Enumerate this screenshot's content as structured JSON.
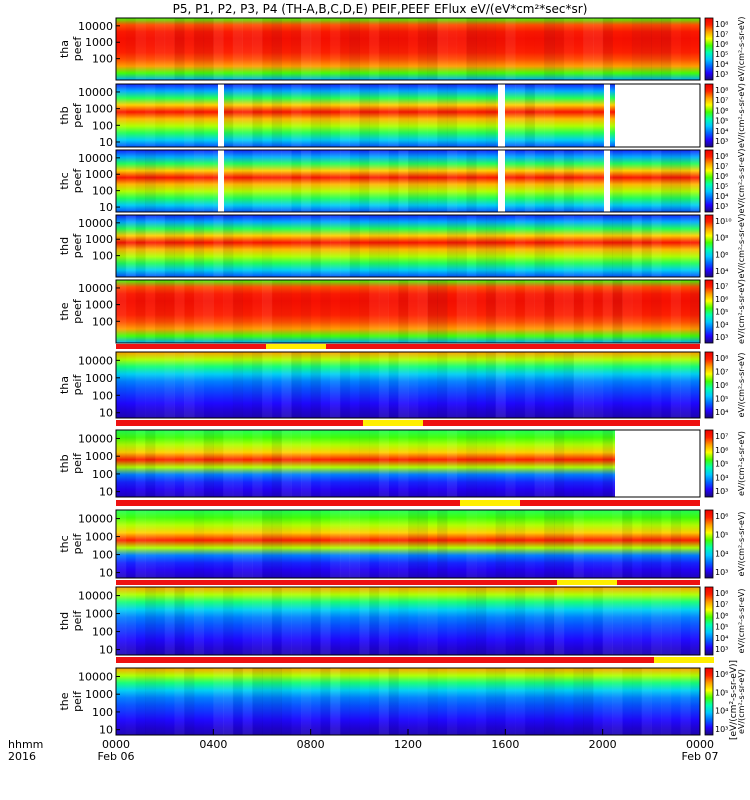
{
  "title": "P5, P1, P2, P3, P4 (TH-A,B,C,D,E) PEIF,PEEF EFlux eV/(eV*cm²*sec*sr)",
  "chart_data": [
    {
      "type": "heatmap",
      "x_axis": {
        "row_labels": [
          "hhmm",
          "2016"
        ],
        "range": [
          "2016-02-06 00:00",
          "2016-02-07 00:00"
        ],
        "ticks": [
          {
            "t": "0000",
            "d": "Feb 06"
          },
          {
            "t": "0400",
            "d": ""
          },
          {
            "t": "0800",
            "d": ""
          },
          {
            "t": "1200",
            "d": ""
          },
          {
            "t": "1600",
            "d": ""
          },
          {
            "t": "2000",
            "d": ""
          },
          {
            "t": "0000",
            "d": "Feb 07"
          }
        ]
      },
      "energy_scale": "log",
      "panels": [
        {
          "probe": "tha",
          "species": "peef",
          "ylabel": [
            "tha",
            "peef"
          ],
          "yticks": [
            "10000",
            "1000",
            "100"
          ],
          "ylim": [
            5,
            30000
          ],
          "cbar_ticks": [
            "10⁸",
            "10⁷",
            "10⁶",
            "10⁵",
            "10⁴",
            "10³"
          ],
          "cbar_label": "eV/(cm²-s-sr-eV)"
        },
        {
          "probe": "thb",
          "species": "peef",
          "ylabel": [
            "thb",
            "peef"
          ],
          "yticks": [
            "10000",
            "1000",
            "100",
            "10"
          ],
          "ylim": [
            5,
            30000
          ],
          "cbar_ticks": [
            "10⁸",
            "10⁷",
            "10⁶",
            "10⁵",
            "10⁴",
            "10³"
          ],
          "cbar_label": "eV/(cm²-s-sr-eV)"
        },
        {
          "probe": "thc",
          "species": "peef",
          "ylabel": [
            "thc",
            "peef"
          ],
          "yticks": [
            "10000",
            "1000",
            "100",
            "10"
          ],
          "ylim": [
            5,
            30000
          ],
          "cbar_ticks": [
            "10⁸",
            "10⁷",
            "10⁶",
            "10⁵",
            "10⁴",
            "10³"
          ],
          "cbar_label": "eV/(cm²-s-sr-eV)"
        },
        {
          "probe": "thd",
          "species": "peef",
          "ylabel": [
            "thd",
            "peef"
          ],
          "yticks": [
            "10000",
            "1000",
            "100"
          ],
          "ylim": [
            5,
            30000
          ],
          "cbar_ticks": [
            "10¹⁰",
            "10⁸",
            "10⁶",
            "10⁴"
          ],
          "cbar_label": "eV/(cm²-s-sr-eV)"
        },
        {
          "probe": "the",
          "species": "peef",
          "ylabel": [
            "the",
            "peef"
          ],
          "yticks": [
            "10000",
            "1000",
            "100"
          ],
          "ylim": [
            5,
            30000
          ],
          "cbar_ticks": [
            "10⁷",
            "10⁶",
            "10⁵",
            "10⁴",
            "10³"
          ],
          "cbar_label": "eV/(cm²-s-sr-eV)"
        },
        {
          "probe": "tha",
          "species": "peif",
          "ylabel": [
            "tha",
            "peif"
          ],
          "yticks": [
            "10000",
            "1000",
            "100",
            "10"
          ],
          "ylim": [
            5,
            30000
          ],
          "cbar_ticks": [
            "10⁸",
            "10⁷",
            "10⁶",
            "10⁵",
            "10⁴"
          ],
          "cbar_label": "eV/(cm²-s-sr-eV)"
        },
        {
          "probe": "thb",
          "species": "peif",
          "ylabel": [
            "thb",
            "peif"
          ],
          "yticks": [
            "10000",
            "1000",
            "100",
            "10"
          ],
          "ylim": [
            5,
            30000
          ],
          "cbar_ticks": [
            "10⁷",
            "10⁶",
            "10⁵",
            "10⁴",
            "10³"
          ],
          "cbar_label": "eV/(cm²-s-sr-eV)"
        },
        {
          "probe": "thc",
          "species": "peif",
          "ylabel": [
            "thc",
            "peif"
          ],
          "yticks": [
            "10000",
            "1000",
            "100",
            "10"
          ],
          "ylim": [
            5,
            30000
          ],
          "cbar_ticks": [
            "10⁶",
            "10⁵",
            "10⁴",
            "10³"
          ],
          "cbar_label": "eV/(cm²-s-sr-eV)"
        },
        {
          "probe": "thd",
          "species": "peif",
          "ylabel": [
            "thd",
            "peif"
          ],
          "yticks": [
            "10000",
            "1000",
            "100",
            "10"
          ],
          "ylim": [
            5,
            30000
          ],
          "cbar_ticks": [
            "10⁸",
            "10⁷",
            "10⁶",
            "10⁵",
            "10⁴",
            "10³"
          ],
          "cbar_label": "eV/(cm²-s-sr-eV)"
        },
        {
          "probe": "the",
          "species": "peif",
          "ylabel": [
            "the",
            "peif"
          ],
          "yticks": [
            "10000",
            "1000",
            "100",
            "10"
          ],
          "ylim": [
            5,
            30000
          ],
          "cbar_ticks": [
            "10⁶",
            "10⁵",
            "10⁴",
            "10³"
          ],
          "cbar_label": "eV/(cm²-s-sr-eV)"
        }
      ],
      "bottom_colorbar_label": "[eV/(cm²-s-sr-eV)]",
      "region_bar_colors": {
        "red": "#ee1111",
        "yellow": "#ffee00"
      },
      "colormap": [
        "#1a0a78",
        "#2200ff",
        "#0066ff",
        "#00c8ff",
        "#00ffb0",
        "#44ff00",
        "#ffff00",
        "#ffa000",
        "#ff2200",
        "#ee0000"
      ]
    }
  ]
}
